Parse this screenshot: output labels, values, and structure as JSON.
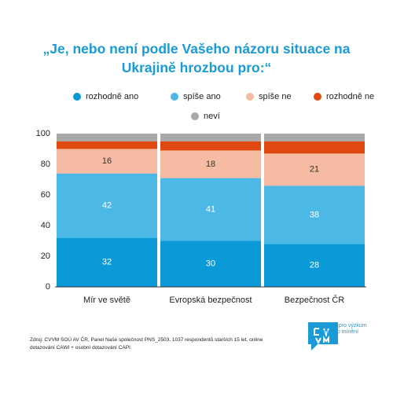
{
  "chart_data": {
    "type": "stacked-bar",
    "title": "„Je, nebo není podle Vašeho názoru situace na Ukrajině hrozbou pro:“",
    "categories": [
      "Mír ve světě",
      "Evropská bezpečnost",
      "Bezpečnost ČR"
    ],
    "series": [
      {
        "name": "rozhodně ano",
        "color": "#0a9ad8",
        "values": [
          32,
          30,
          28
        ],
        "show_labels": true
      },
      {
        "name": "spíše ano",
        "color": "#4cb8e6",
        "values": [
          42,
          41,
          38
        ],
        "show_labels": true
      },
      {
        "name": "spíše ne",
        "color": "#f5bba3",
        "values": [
          16,
          18,
          21
        ],
        "show_labels": true
      },
      {
        "name": "rozhodně ne",
        "color": "#e04a10",
        "values": [
          5,
          6,
          8
        ],
        "show_labels": false
      },
      {
        "name": "neví",
        "color": "#a8a8a8",
        "values": [
          5,
          5,
          5
        ],
        "show_labels": false
      }
    ],
    "ylim": [
      0,
      100
    ],
    "yticks": [
      0,
      20,
      40,
      60,
      80,
      100
    ],
    "source": "Zdroj: CVVM SOÚ AV ČR, Panel Naše společnost PNS_2503, 1037 respondentů starších 15 let, online dotazování CAWI + osobní dotazování CAPI.",
    "logo_text": "Centrum pro výzkum veřejného mínění"
  }
}
